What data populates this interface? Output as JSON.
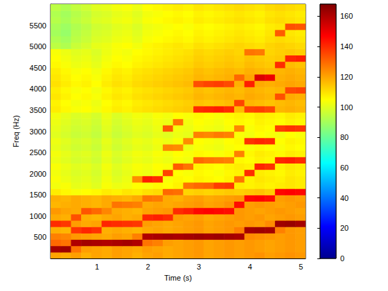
{
  "chart_data": {
    "type": "heatmap",
    "xlabel": "Time (s)",
    "ylabel": "Freq (Hz)",
    "xlim": [
      0.09,
      5.09
    ],
    "ylim": [
      0,
      6000
    ],
    "xticks": [
      1,
      2,
      3,
      4,
      5
    ],
    "yticks": [
      500,
      1000,
      1500,
      2000,
      2500,
      3000,
      3500,
      4000,
      4500,
      5000,
      5500
    ],
    "grid": false,
    "colorbar": {
      "range": [
        0,
        168
      ],
      "ticks": [
        0,
        20,
        40,
        60,
        80,
        100,
        120,
        140,
        160
      ]
    },
    "x": [
      0.19,
      0.39,
      0.59,
      0.79,
      0.99,
      1.19,
      1.39,
      1.59,
      1.79,
      1.99,
      2.19,
      2.39,
      2.59,
      2.79,
      2.99,
      3.19,
      3.39,
      3.59,
      3.79,
      3.99,
      4.19,
      4.39,
      4.59,
      4.79,
      4.99
    ],
    "y": [
      75,
      225,
      375,
      525,
      675,
      825,
      975,
      1125,
      1275,
      1425,
      1575,
      1725,
      1875,
      2025,
      2175,
      2325,
      2475,
      2625,
      2775,
      2925,
      3075,
      3225,
      3375,
      3525,
      3675,
      3825,
      3975,
      4125,
      4275,
      4425,
      4575,
      4725,
      4875,
      5025,
      5175,
      5325,
      5475,
      5625,
      5775,
      5925
    ],
    "z": [
      [
        120,
        119,
        121,
        118,
        120,
        119,
        121,
        120,
        118,
        120,
        121,
        119,
        120,
        121,
        122,
        120,
        121,
        122,
        121,
        122,
        123,
        121,
        122,
        123,
        122
      ],
      [
        162,
        163,
        128,
        121,
        120,
        119,
        121,
        120,
        119,
        121,
        120,
        119,
        120,
        121,
        122,
        120,
        121,
        122,
        121,
        122,
        121,
        120,
        121,
        122,
        121
      ],
      [
        130,
        128,
        160,
        162,
        161,
        160,
        161,
        162,
        160,
        128,
        126,
        121,
        120,
        121,
        122,
        120,
        121,
        122,
        121,
        122,
        121,
        120,
        121,
        122,
        121
      ],
      [
        126,
        125,
        122,
        121,
        120,
        119,
        121,
        120,
        126,
        160,
        161,
        162,
        161,
        162,
        163,
        162,
        163,
        162,
        161,
        124,
        123,
        122,
        121,
        122,
        121
      ],
      [
        118,
        117,
        138,
        141,
        139,
        118,
        119,
        118,
        117,
        119,
        120,
        119,
        120,
        121,
        122,
        120,
        121,
        122,
        126,
        162,
        163,
        162,
        126,
        122,
        121
      ],
      [
        140,
        138,
        121,
        119,
        120,
        141,
        140,
        139,
        138,
        121,
        120,
        119,
        120,
        121,
        122,
        120,
        121,
        122,
        121,
        122,
        121,
        124,
        163,
        164,
        162
      ],
      [
        119,
        118,
        134,
        118,
        117,
        119,
        120,
        118,
        119,
        141,
        142,
        140,
        121,
        120,
        121,
        119,
        120,
        121,
        122,
        121,
        122,
        120,
        121,
        122,
        121
      ],
      [
        122,
        120,
        119,
        133,
        130,
        125,
        119,
        118,
        117,
        120,
        121,
        122,
        140,
        142,
        146,
        147,
        146,
        145,
        122,
        121,
        120,
        121,
        122,
        121,
        120
      ],
      [
        117,
        118,
        119,
        118,
        117,
        119,
        128,
        127,
        126,
        119,
        120,
        119,
        120,
        121,
        122,
        120,
        121,
        123,
        145,
        121,
        122,
        121,
        120,
        121,
        122
      ],
      [
        118,
        117,
        119,
        118,
        117,
        119,
        118,
        117,
        119,
        128,
        127,
        119,
        118,
        120,
        121,
        119,
        120,
        121,
        122,
        146,
        147,
        145,
        121,
        122,
        121
      ],
      [
        108,
        106,
        104,
        105,
        106,
        108,
        107,
        109,
        108,
        110,
        111,
        130,
        129,
        112,
        113,
        112,
        113,
        114,
        113,
        114,
        115,
        113,
        146,
        147,
        146
      ],
      [
        103,
        104,
        101,
        102,
        100,
        104,
        102,
        103,
        105,
        104,
        106,
        105,
        107,
        128,
        130,
        131,
        137,
        138,
        108,
        107,
        108,
        107,
        108,
        109,
        108
      ],
      [
        104,
        102,
        100,
        101,
        99,
        103,
        100,
        102,
        124,
        142,
        140,
        104,
        106,
        105,
        107,
        106,
        105,
        107,
        128,
        107,
        109,
        108,
        107,
        109,
        108
      ],
      [
        103,
        101,
        99,
        100,
        98,
        102,
        99,
        101,
        103,
        102,
        104,
        136,
        105,
        104,
        106,
        105,
        104,
        106,
        107,
        140,
        108,
        107,
        106,
        108,
        107
      ],
      [
        104,
        102,
        100,
        101,
        99,
        103,
        100,
        102,
        104,
        103,
        105,
        104,
        132,
        128,
        107,
        106,
        105,
        107,
        108,
        107,
        141,
        139,
        107,
        109,
        108
      ],
      [
        102,
        100,
        98,
        99,
        97,
        101,
        98,
        100,
        102,
        101,
        103,
        102,
        104,
        103,
        130,
        128,
        127,
        126,
        106,
        105,
        107,
        106,
        141,
        142,
        140
      ],
      [
        103,
        101,
        99,
        100,
        98,
        102,
        99,
        101,
        103,
        102,
        104,
        103,
        105,
        104,
        106,
        105,
        104,
        106,
        126,
        106,
        108,
        107,
        106,
        108,
        107
      ],
      [
        101,
        99,
        97,
        98,
        96,
        100,
        97,
        99,
        101,
        100,
        102,
        125,
        124,
        102,
        104,
        103,
        102,
        104,
        105,
        104,
        106,
        105,
        104,
        106,
        105
      ],
      [
        102,
        100,
        98,
        99,
        97,
        101,
        98,
        100,
        102,
        101,
        103,
        102,
        104,
        124,
        105,
        104,
        103,
        105,
        106,
        139,
        141,
        140,
        105,
        107,
        106
      ],
      [
        100,
        98,
        96,
        97,
        95,
        99,
        96,
        98,
        100,
        99,
        101,
        100,
        102,
        101,
        126,
        125,
        127,
        126,
        104,
        103,
        105,
        104,
        103,
        105,
        104
      ],
      [
        101,
        99,
        97,
        98,
        96,
        100,
        97,
        99,
        101,
        100,
        102,
        132,
        103,
        102,
        104,
        103,
        102,
        104,
        125,
        104,
        106,
        105,
        137,
        139,
        138
      ],
      [
        102,
        100,
        98,
        99,
        97,
        101,
        98,
        100,
        102,
        101,
        103,
        102,
        128,
        103,
        105,
        104,
        103,
        105,
        106,
        105,
        107,
        106,
        105,
        107,
        106
      ],
      [
        103,
        101,
        99,
        100,
        98,
        102,
        99,
        101,
        103,
        102,
        104,
        103,
        105,
        104,
        106,
        105,
        104,
        106,
        107,
        106,
        108,
        107,
        106,
        108,
        107
      ],
      [
        108,
        106,
        104,
        105,
        103,
        106,
        108,
        107,
        109,
        110,
        111,
        112,
        113,
        114,
        140,
        141,
        142,
        140,
        116,
        136,
        137,
        135,
        117,
        118,
        117
      ],
      [
        107,
        105,
        103,
        104,
        102,
        105,
        107,
        106,
        108,
        109,
        110,
        111,
        112,
        113,
        115,
        114,
        115,
        116,
        136,
        117,
        116,
        115,
        116,
        117,
        116
      ],
      [
        109,
        107,
        105,
        106,
        104,
        107,
        109,
        108,
        110,
        111,
        112,
        113,
        114,
        115,
        117,
        116,
        117,
        118,
        117,
        119,
        118,
        117,
        134,
        119,
        118
      ],
      [
        108,
        106,
        104,
        105,
        103,
        106,
        108,
        107,
        109,
        110,
        111,
        112,
        113,
        114,
        116,
        115,
        116,
        117,
        116,
        118,
        117,
        116,
        117,
        135,
        136
      ],
      [
        110,
        108,
        106,
        107,
        105,
        108,
        110,
        109,
        111,
        112,
        113,
        114,
        115,
        116,
        134,
        136,
        137,
        135,
        118,
        142,
        119,
        118,
        119,
        120,
        119
      ],
      [
        109,
        107,
        105,
        106,
        104,
        107,
        109,
        108,
        110,
        111,
        112,
        113,
        114,
        115,
        117,
        116,
        117,
        118,
        130,
        120,
        153,
        150,
        118,
        119,
        118
      ],
      [
        108,
        106,
        104,
        105,
        103,
        106,
        108,
        107,
        109,
        110,
        111,
        112,
        113,
        114,
        116,
        115,
        116,
        117,
        116,
        118,
        117,
        116,
        117,
        118,
        117
      ],
      [
        106,
        104,
        102,
        103,
        101,
        104,
        106,
        105,
        107,
        108,
        109,
        110,
        111,
        112,
        114,
        113,
        114,
        115,
        114,
        116,
        115,
        114,
        140,
        116,
        115
      ],
      [
        105,
        103,
        101,
        102,
        100,
        103,
        105,
        104,
        106,
        107,
        108,
        109,
        110,
        111,
        113,
        112,
        113,
        114,
        113,
        115,
        114,
        113,
        114,
        141,
        142
      ],
      [
        104,
        102,
        100,
        101,
        99,
        102,
        104,
        103,
        105,
        106,
        107,
        108,
        109,
        110,
        112,
        111,
        112,
        113,
        112,
        128,
        127,
        112,
        113,
        114,
        113
      ],
      [
        94,
        92,
        96,
        98,
        101,
        102,
        104,
        105,
        103,
        106,
        107,
        108,
        109,
        108,
        110,
        109,
        110,
        111,
        112,
        111,
        110,
        112,
        113,
        112,
        111
      ],
      [
        92,
        90,
        94,
        96,
        99,
        100,
        102,
        103,
        101,
        104,
        105,
        106,
        107,
        106,
        108,
        107,
        108,
        109,
        110,
        109,
        108,
        110,
        111,
        110,
        109
      ],
      [
        90,
        88,
        93,
        95,
        98,
        99,
        101,
        102,
        100,
        103,
        104,
        105,
        106,
        105,
        107,
        106,
        107,
        108,
        109,
        108,
        107,
        109,
        132,
        109,
        108
      ],
      [
        91,
        89,
        92,
        94,
        97,
        98,
        100,
        101,
        99,
        102,
        103,
        104,
        105,
        104,
        106,
        105,
        106,
        107,
        108,
        107,
        106,
        108,
        109,
        134,
        133
      ],
      [
        93,
        91,
        94,
        96,
        99,
        100,
        102,
        103,
        101,
        104,
        105,
        106,
        107,
        106,
        108,
        107,
        108,
        109,
        110,
        109,
        108,
        110,
        111,
        110,
        109
      ],
      [
        92,
        90,
        93,
        95,
        98,
        99,
        101,
        102,
        100,
        103,
        104,
        105,
        106,
        105,
        107,
        106,
        107,
        108,
        109,
        108,
        107,
        109,
        110,
        109,
        108
      ],
      [
        94,
        92,
        95,
        97,
        100,
        101,
        103,
        104,
        102,
        105,
        106,
        107,
        108,
        107,
        109,
        108,
        109,
        110,
        111,
        110,
        109,
        111,
        112,
        111,
        110
      ]
    ]
  }
}
